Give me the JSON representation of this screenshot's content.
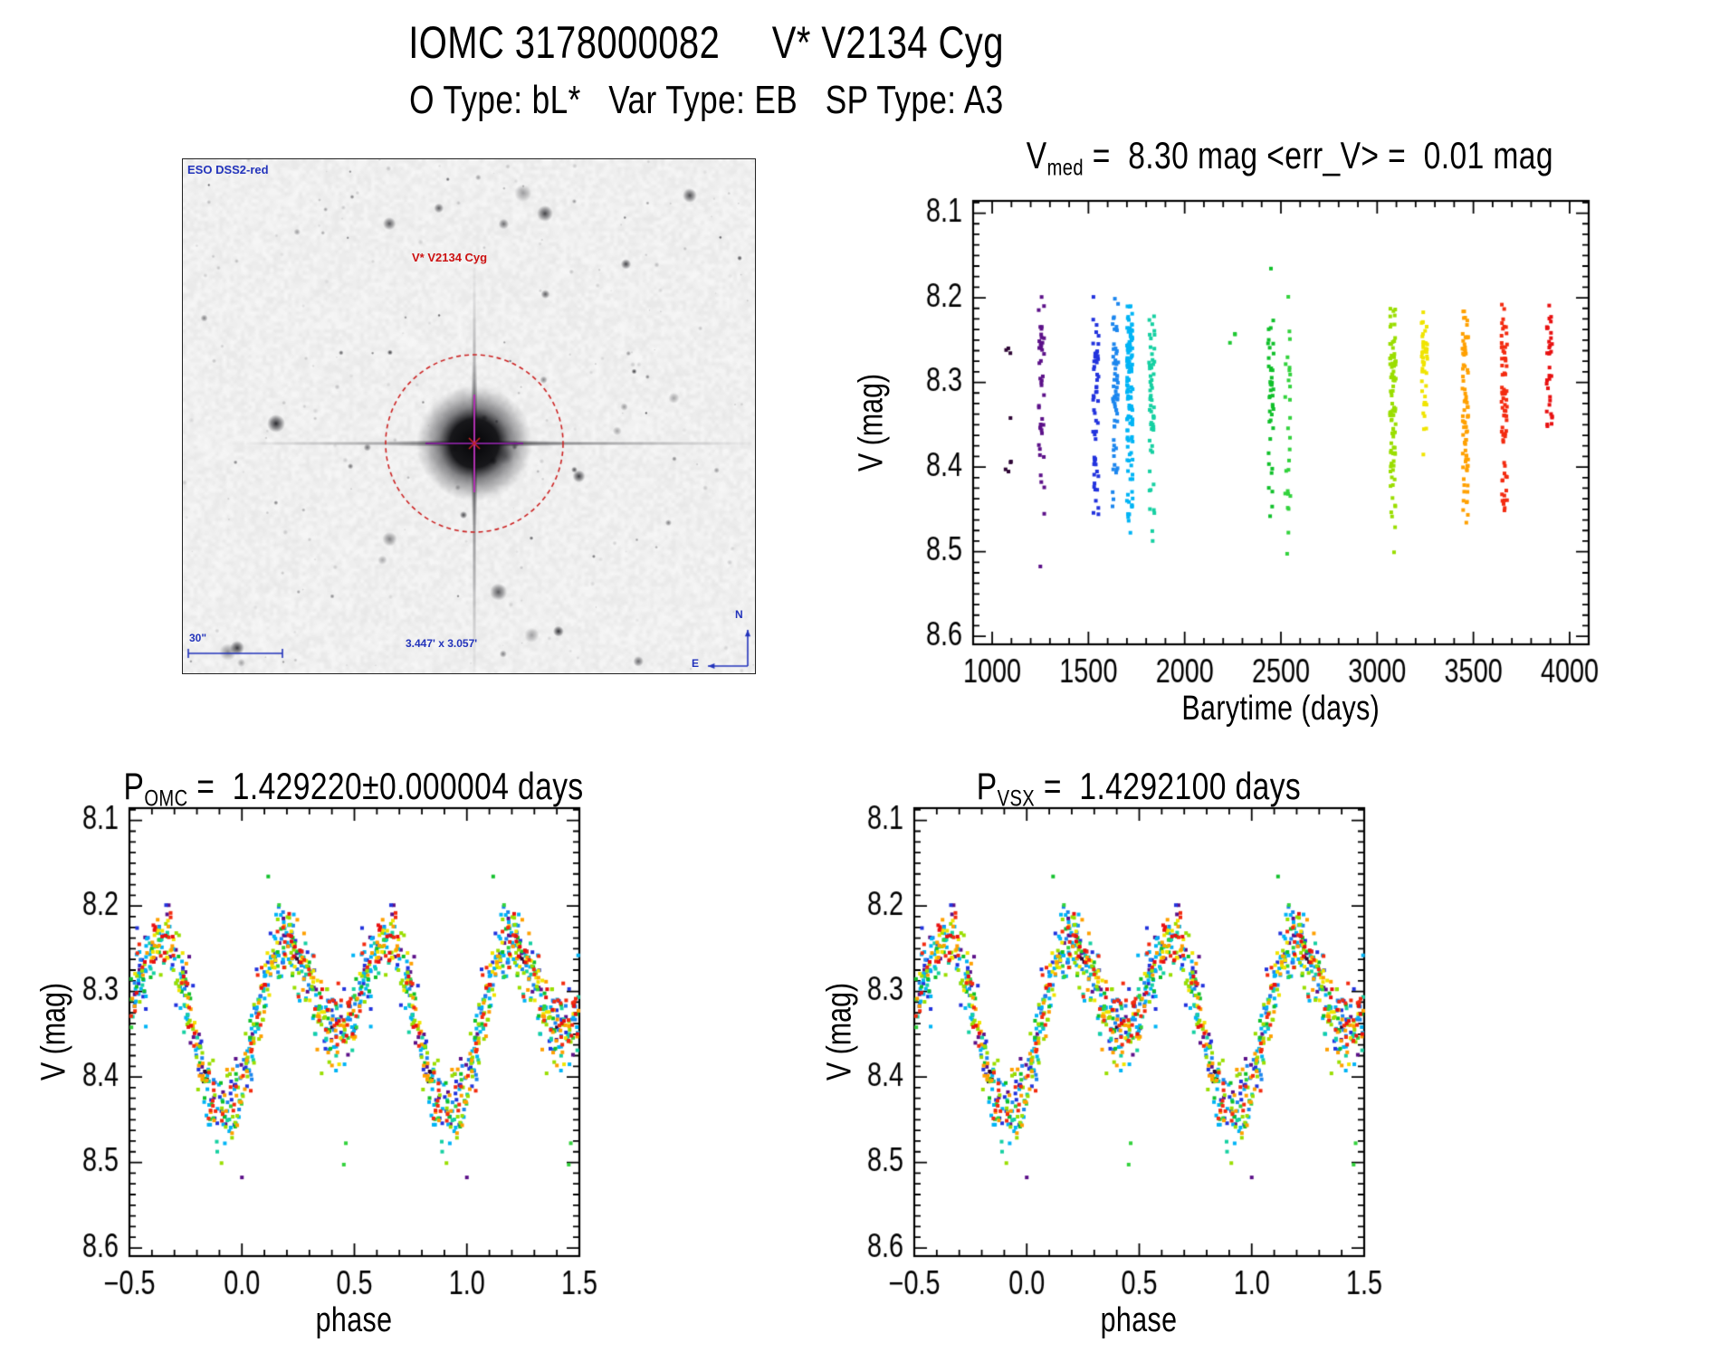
{
  "header": {
    "title": "IOMC 3178000082     V* V2134 Cyg",
    "subtitle": "O Type: bL*   Var Type: EB   SP Type: A3"
  },
  "image_panel": {
    "survey_label": "ESO DSS2-red",
    "target_label": "V* V2134 Cyg",
    "scale_bar_label": "30\"",
    "fov_label": "3.447' x 3.057'",
    "compass_north": "N",
    "compass_east": "E",
    "annotation_color": "#2233bb",
    "target_color": "#cc1111",
    "marker_color": "#cc2222",
    "crosshair_color": "#b030b0"
  },
  "chart_data": [
    {
      "id": "lightcurve_vs_time",
      "type": "scatter",
      "title": {
        "prefix": "V",
        "sub": "med",
        "rest": " =  8.30 mag <err_V> =  0.01 mag"
      },
      "xlabel": "Barytime (days)",
      "ylabel": "V (mag)",
      "xlim": [
        1000,
        4000
      ],
      "ylim_mag": [
        8.088,
        8.612
      ],
      "y_axis_inverted": true,
      "grid": false,
      "legend": "none",
      "x_ticks": [
        {
          "v": 1000,
          "label": "1000"
        },
        {
          "v": 1500,
          "label": "1500"
        },
        {
          "v": 2000,
          "label": "2000"
        },
        {
          "v": 2500,
          "label": "2500"
        },
        {
          "v": 3000,
          "label": "3000"
        },
        {
          "v": 3500,
          "label": "3500"
        },
        {
          "v": 4000,
          "label": "4000"
        }
      ],
      "x_minor_step": 100,
      "y_ticks": [
        {
          "v": 8.1,
          "label": "8.1"
        },
        {
          "v": 8.2,
          "label": "8.2"
        },
        {
          "v": 8.3,
          "label": "8.3"
        },
        {
          "v": 8.4,
          "label": "8.4"
        },
        {
          "v": 8.5,
          "label": "8.5"
        },
        {
          "v": 8.6,
          "label": "8.6"
        }
      ],
      "y_minor_step": 0.0125,
      "clusters": [
        {
          "bt": 1084,
          "color": "#2e0635",
          "n": 8,
          "sigma": 0.01,
          "bias": 0.0,
          "phases": [
            0.235,
            0.245,
            0.255,
            0.4,
            0.83,
            0.835,
            0.84,
            0.845
          ]
        },
        {
          "bt": 1256,
          "color": "#5c1189",
          "n": 42,
          "sigma": 0.02,
          "bias": -0.008,
          "extras": [
            {
              "phase": 0.0,
              "mag": 8.52
            }
          ]
        },
        {
          "bt": 1538,
          "color": "#2233dd",
          "n": 55,
          "sigma": 0.026,
          "bias": -0.012
        },
        {
          "bt": 1640,
          "color": "#1c86ee",
          "n": 60,
          "sigma": 0.02,
          "bias": 0.0
        },
        {
          "bt": 1715,
          "color": "#00b4f5",
          "n": 130,
          "sigma": 0.021,
          "bias": 0.004
        },
        {
          "bt": 1829,
          "color": "#16d0a2",
          "n": 55,
          "sigma": 0.021,
          "bias": 0.008
        },
        {
          "bt": 2249,
          "color": "#1ec832",
          "n": 3,
          "sigma": 0.006,
          "bias": 0.0,
          "phases": [
            0.225,
            0.235,
            0.245
          ]
        },
        {
          "bt": 2447,
          "color": "#10c02a",
          "n": 40,
          "sigma": 0.02,
          "bias": 0.0,
          "extras": [
            {
              "phase": 0.117,
              "mag": 8.168
            }
          ]
        },
        {
          "bt": 2535,
          "color": "#32d23c",
          "n": 25,
          "sigma": 0.02,
          "bias": 0.0,
          "extras": [
            {
              "phase": 0.453,
              "mag": 8.505
            },
            {
              "phase": 0.462,
              "mag": 8.48
            }
          ]
        },
        {
          "bt": 3082,
          "color": "#9ade00",
          "n": 90,
          "sigma": 0.021,
          "bias": 0.004
        },
        {
          "bt": 3246,
          "color": "#f0e400",
          "n": 45,
          "sigma": 0.016,
          "bias": 0.0,
          "avoid_primary": true
        },
        {
          "bt": 3458,
          "color": "#ffa000",
          "n": 80,
          "sigma": 0.021,
          "bias": 0.004
        },
        {
          "bt": 3661,
          "color": "#f32b10",
          "n": 70,
          "sigma": 0.021,
          "bias": 0.0
        },
        {
          "bt": 3894,
          "color": "#e81010",
          "n": 35,
          "sigma": 0.016,
          "bias": 0.0,
          "avoid_primary": true
        }
      ]
    },
    {
      "id": "phase_folded_omc",
      "type": "scatter",
      "title": {
        "prefix": "P",
        "sub": "OMC",
        "rest": " =  1.429220±0.000004 days"
      },
      "xlabel": "phase",
      "ylabel": "V (mag)",
      "xlim": [
        -0.5,
        1.5
      ],
      "ylim_mag": [
        8.088,
        8.612
      ],
      "y_axis_inverted": true,
      "grid": false,
      "legend": "none",
      "x_ticks": [
        {
          "v": -0.5,
          "label": "−0.5"
        },
        {
          "v": 0.0,
          "label": "0.0"
        },
        {
          "v": 0.5,
          "label": "0.5"
        },
        {
          "v": 1.0,
          "label": "1.0"
        },
        {
          "v": 1.5,
          "label": "1.5"
        }
      ],
      "x_minor_step": 0.1,
      "y_ticks": [
        {
          "v": 8.1,
          "label": "8.1"
        },
        {
          "v": 8.2,
          "label": "8.2"
        },
        {
          "v": 8.3,
          "label": "8.3"
        },
        {
          "v": 8.4,
          "label": "8.4"
        },
        {
          "v": 8.5,
          "label": "8.5"
        },
        {
          "v": 8.6,
          "label": "8.6"
        }
      ],
      "y_minor_step": 0.0125,
      "model": {
        "a0": 8.32125,
        "a1": 0.0475,
        "a2": 0.07625,
        "phi0": 0.92,
        "max_mag": 8.245,
        "primary_min_mag": 8.445,
        "secondary_min_mag": 8.35,
        "primary_min_phase": 0.92,
        "secondary_min_phase": 0.42
      }
    },
    {
      "id": "phase_folded_vsx",
      "type": "scatter",
      "title": {
        "prefix": "P",
        "sub": "VSX",
        "rest": " =  1.4292100 days"
      },
      "xlabel": "phase",
      "ylabel": "V (mag)",
      "xlim": [
        -0.5,
        1.5
      ],
      "ylim_mag": [
        8.088,
        8.612
      ],
      "y_axis_inverted": true,
      "grid": false,
      "legend": "none",
      "x_ticks": [
        {
          "v": -0.5,
          "label": "−0.5"
        },
        {
          "v": 0.0,
          "label": "0.0"
        },
        {
          "v": 0.5,
          "label": "0.5"
        },
        {
          "v": 1.0,
          "label": "1.0"
        },
        {
          "v": 1.5,
          "label": "1.5"
        }
      ],
      "x_minor_step": 0.1,
      "y_ticks": [
        {
          "v": 8.1,
          "label": "8.1"
        },
        {
          "v": 8.2,
          "label": "8.2"
        },
        {
          "v": 8.3,
          "label": "8.3"
        },
        {
          "v": 8.4,
          "label": "8.4"
        },
        {
          "v": 8.5,
          "label": "8.5"
        },
        {
          "v": 8.6,
          "label": "8.6"
        }
      ],
      "y_minor_step": 0.0125,
      "model": {
        "a0": 8.32125,
        "a1": 0.0475,
        "a2": 0.07625,
        "phi0": 0.92,
        "max_mag": 8.245,
        "primary_min_mag": 8.445,
        "secondary_min_mag": 8.35,
        "primary_min_phase": 0.92,
        "secondary_min_phase": 0.42
      }
    }
  ]
}
